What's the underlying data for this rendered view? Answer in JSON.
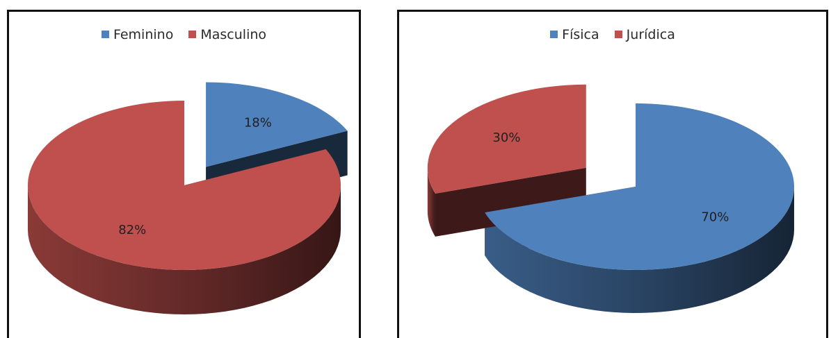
{
  "chart_data": [
    {
      "type": "pie",
      "legend_position": "top",
      "colors": {
        "Feminino": "#4f81bd",
        "Masculino": "#c0504d"
      },
      "categories": [
        "Feminino",
        "Masculino"
      ],
      "values": [
        18,
        82
      ],
      "labels": [
        "18%",
        "82%"
      ],
      "exploded": "Feminino"
    },
    {
      "type": "pie",
      "legend_position": "top",
      "colors": {
        "Física": "#4f81bd",
        "Jurídica": "#c0504d"
      },
      "categories": [
        "Física",
        "Jurídica"
      ],
      "values": [
        70,
        30
      ],
      "labels": [
        "70%",
        "30%"
      ],
      "exploded": "Jurídica"
    }
  ]
}
